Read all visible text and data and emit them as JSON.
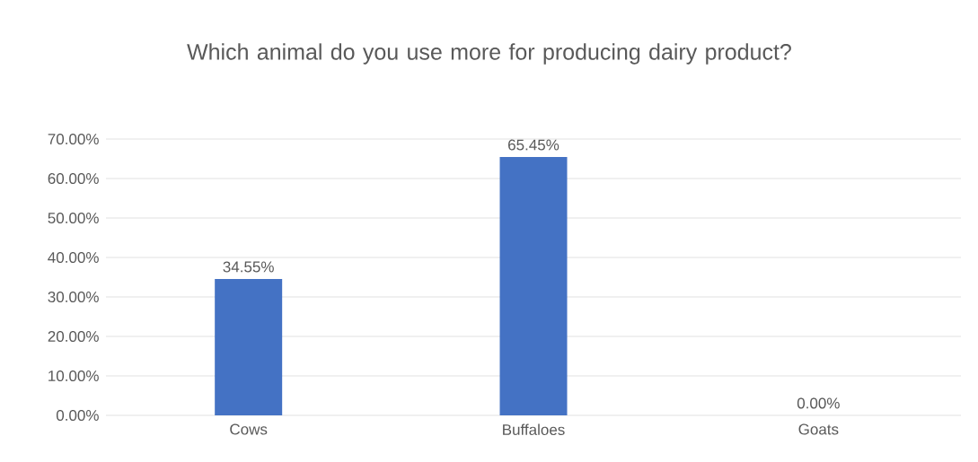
{
  "chart_data": {
    "type": "bar",
    "title": "Which animal do you use more for producing dairy product?",
    "categories": [
      "Cows",
      "Buffaloes",
      "Goats"
    ],
    "values": [
      34.55,
      65.45,
      0
    ],
    "value_labels": [
      "34.55%",
      "65.45%",
      "0.00%"
    ],
    "color": "#4472c4",
    "ylim": [
      0,
      70
    ],
    "yticks": [
      {
        "value": 0,
        "label": "0.00%"
      },
      {
        "value": 10,
        "label": "10.00%"
      },
      {
        "value": 20,
        "label": "20.00%"
      },
      {
        "value": 30,
        "label": "30.00%"
      },
      {
        "value": 40,
        "label": "40.00%"
      },
      {
        "value": 50,
        "label": "50.00%"
      },
      {
        "value": 60,
        "label": "60.00%"
      },
      {
        "value": 70,
        "label": "70.00%"
      }
    ],
    "grid": "y"
  }
}
